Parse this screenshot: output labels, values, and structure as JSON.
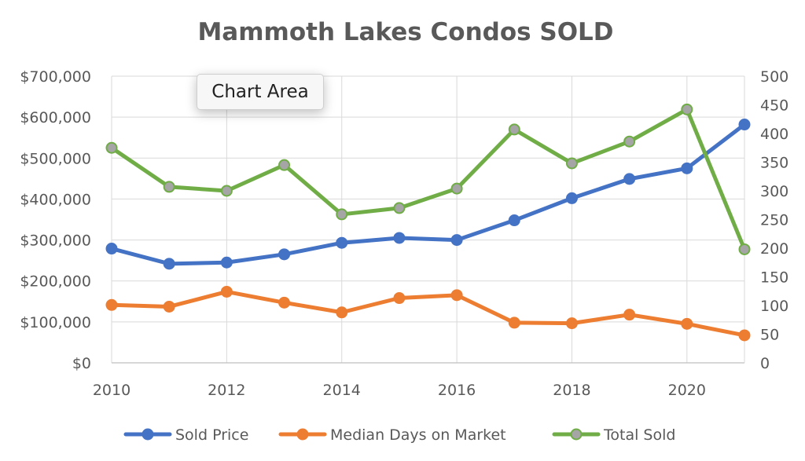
{
  "chart_data": {
    "type": "line",
    "title": "Mammoth Lakes Condos SOLD",
    "x": [
      2010,
      2011,
      2012,
      2013,
      2014,
      2015,
      2016,
      2017,
      2018,
      2019,
      2020,
      2021
    ],
    "x_ticks": [
      "2010",
      "2012",
      "2014",
      "2016",
      "2018",
      "2020"
    ],
    "y_left": {
      "range": [
        0,
        700000
      ],
      "ticks": [
        "$0",
        "$100,000",
        "$200,000",
        "$300,000",
        "$400,000",
        "$500,000",
        "$600,000",
        "$700,000"
      ]
    },
    "y_right": {
      "range": [
        0,
        500
      ],
      "ticks": [
        "0",
        "50",
        "100",
        "150",
        "200",
        "250",
        "300",
        "350",
        "400",
        "450",
        "500"
      ]
    },
    "grid": true,
    "legend_position": "bottom",
    "series": [
      {
        "name": "Sold Price",
        "axis": "left",
        "color": "#4472c4",
        "values": [
          279000,
          242000,
          245000,
          265000,
          293000,
          305000,
          300000,
          348000,
          402000,
          449000,
          475000,
          582000
        ]
      },
      {
        "name": "Median Days on Market",
        "axis": "right",
        "color": "#ed7d31",
        "values": [
          101,
          98,
          124,
          105,
          88,
          113,
          118,
          70,
          69,
          84,
          68,
          48
        ]
      },
      {
        "name": "Total Sold",
        "axis": "right",
        "color": "#70ad47",
        "marker_color": "#a5a5a5",
        "values": [
          375,
          307,
          300,
          345,
          259,
          270,
          304,
          407,
          348,
          386,
          442,
          198
        ]
      }
    ]
  },
  "tooltip": {
    "label": "Chart Area"
  }
}
